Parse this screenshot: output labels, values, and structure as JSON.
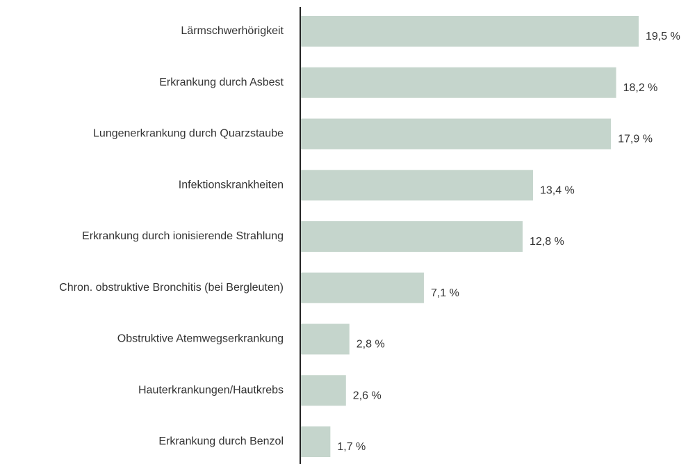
{
  "chart_data": {
    "type": "bar",
    "orientation": "horizontal",
    "categories": [
      "Lärmschwerhörigkeit",
      "Erkrankung durch Asbest",
      "Lungenerkrankung durch Quarzstaube",
      "Infektionskrankheiten",
      "Erkrankung durch ionisierende Strahlung",
      "Chron. obstruktive Bronchitis (bei Bergleuten)",
      "Obstruktive Atemwegserkrankung",
      "Hauterkrankungen/Hautkrebs",
      "Erkrankung durch Benzol"
    ],
    "values": [
      19.5,
      18.2,
      17.9,
      13.4,
      12.8,
      7.1,
      2.8,
      2.6,
      1.7
    ],
    "value_labels": [
      "19,5 %",
      "18,2 %",
      "17,9 %",
      "13,4 %",
      "12,8 %",
      "7,1 %",
      "2,8 %",
      "2,6 %",
      "1,7 %"
    ],
    "color": "#c5d5cc"
  }
}
